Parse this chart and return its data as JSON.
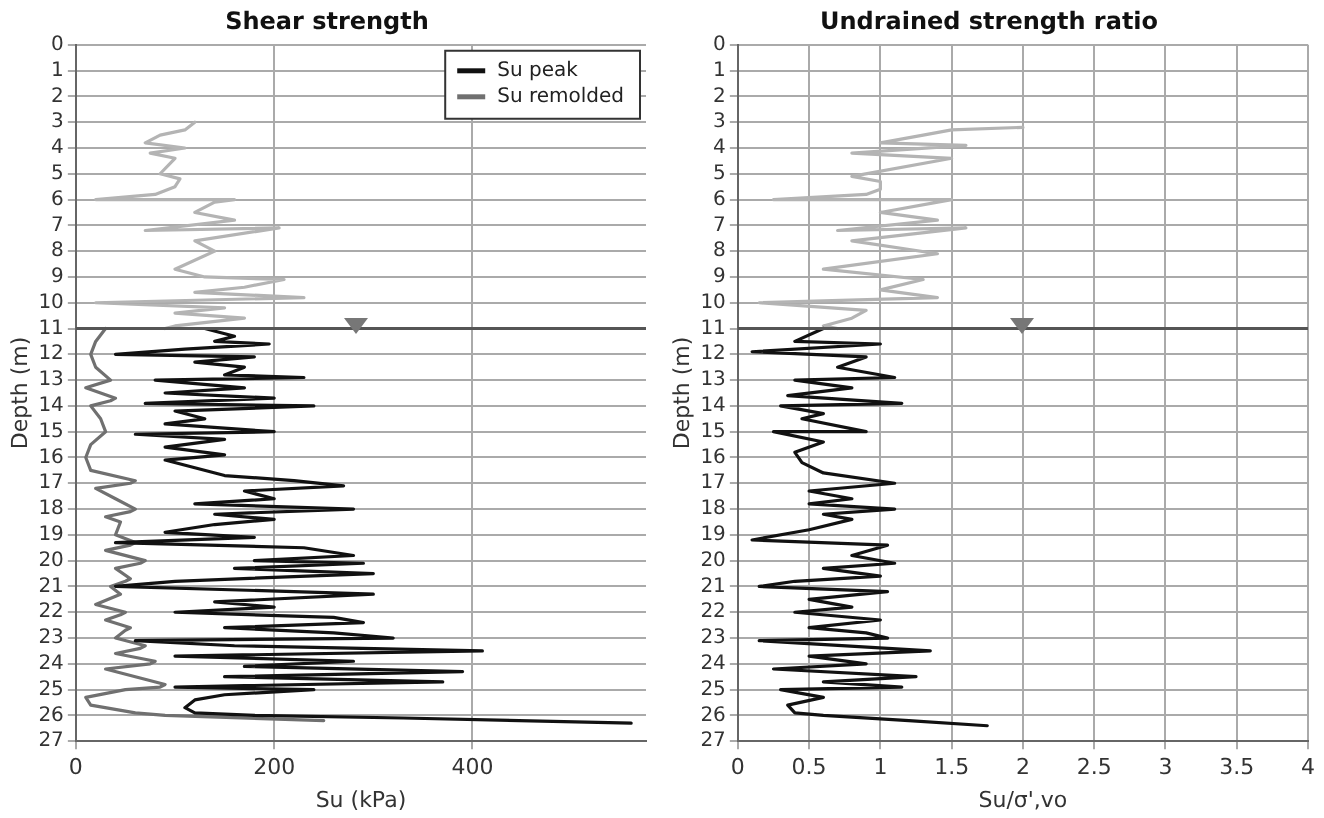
{
  "chart_data": [
    {
      "type": "line",
      "title": "Shear strength",
      "xlabel": "Su (kPa)",
      "ylabel": "Depth (m)",
      "xlim": [
        0,
        575
      ],
      "xticks": [
        0,
        200,
        400
      ],
      "ylim": [
        27,
        0
      ],
      "yticks": [
        0,
        1,
        2,
        3,
        4,
        5,
        6,
        7,
        8,
        9,
        10,
        11,
        12,
        13,
        14,
        15,
        16,
        17,
        18,
        19,
        20,
        21,
        22,
        23,
        24,
        25,
        26,
        27
      ],
      "grid": true,
      "legend": "top right",
      "ref_lines": [
        {
          "axis": "y",
          "value": 11,
          "color": "#555555"
        }
      ],
      "series": [
        {
          "color": "#b4b4b4",
          "x": [
            120,
            110,
            85,
            70,
            110,
            75,
            100,
            85,
            105,
            100,
            80,
            20,
            160,
            140,
            120,
            160,
            70,
            205,
            120,
            140,
            100,
            130,
            210,
            170,
            120,
            230,
            20,
            150,
            100,
            170,
            100,
            90
          ],
          "values": [
            3.0,
            3.3,
            3.5,
            3.8,
            4.0,
            4.2,
            4.4,
            5.0,
            5.2,
            5.5,
            5.8,
            6.0,
            6.0,
            6.1,
            6.5,
            6.8,
            7.2,
            7.1,
            7.6,
            8.0,
            8.7,
            9.0,
            9.1,
            9.4,
            9.6,
            9.8,
            10.0,
            10.2,
            10.4,
            10.6,
            10.9,
            11.0
          ]
        },
        {
          "name": "Su remolded",
          "color": "#707070",
          "x": [
            30,
            20,
            15,
            20,
            35,
            10,
            40,
            35,
            15,
            25,
            30,
            15,
            10,
            15,
            60,
            55,
            20,
            40,
            60,
            55,
            30,
            45,
            40,
            60,
            55,
            30,
            70,
            65,
            40,
            55,
            50,
            35,
            45,
            20,
            50,
            45,
            30,
            55,
            50,
            40,
            70,
            65,
            40,
            80,
            75,
            30,
            60,
            90,
            85,
            50,
            10,
            15,
            60,
            90,
            250
          ],
          "values": [
            11,
            11.5,
            12,
            12.5,
            13,
            13.3,
            13.7,
            13.8,
            14,
            14.5,
            15,
            15.5,
            16,
            16.5,
            16.9,
            17.0,
            17.2,
            17.6,
            18,
            18.1,
            18.3,
            18.5,
            19,
            19.3,
            19.4,
            19.6,
            20,
            20.1,
            20.3,
            20.7,
            20.8,
            21,
            21.3,
            21.7,
            22,
            22.1,
            22.3,
            22.6,
            22.7,
            23,
            23.3,
            23.4,
            23.6,
            23.9,
            24.0,
            24.2,
            24.5,
            24.8,
            24.9,
            25,
            25.3,
            25.6,
            25.9,
            26,
            26.2
          ]
        },
        {
          "name": "Su peak",
          "color": "#111111",
          "x": [
            130,
            160,
            140,
            195,
            110,
            40,
            180,
            120,
            170,
            150,
            230,
            80,
            170,
            90,
            200,
            70,
            240,
            100,
            130,
            90,
            200,
            60,
            150,
            90,
            150,
            90,
            120,
            150,
            220,
            270,
            170,
            200,
            120,
            280,
            140,
            200,
            140,
            90,
            180,
            40,
            230,
            280,
            180,
            290,
            160,
            300,
            100,
            40,
            220,
            300,
            140,
            200,
            100,
            260,
            290,
            150,
            260,
            320,
            60,
            160,
            410,
            100,
            280,
            170,
            390,
            150,
            370,
            100,
            240,
            150,
            120,
            110,
            120,
            180,
            330,
            560
          ],
          "values": [
            11,
            11.3,
            11.5,
            11.6,
            11.8,
            12.0,
            12.1,
            12.3,
            12.5,
            12.8,
            12.9,
            13.0,
            13.3,
            13.5,
            13.7,
            13.9,
            14.0,
            14.2,
            14.5,
            14.7,
            15.0,
            15.1,
            15.3,
            15.6,
            15.9,
            16.1,
            16.4,
            16.7,
            16.9,
            17.1,
            17.3,
            17.6,
            17.8,
            18.0,
            18.2,
            18.4,
            18.6,
            18.9,
            19.1,
            19.3,
            19.5,
            19.8,
            20.0,
            20.1,
            20.3,
            20.5,
            20.8,
            21.0,
            21.2,
            21.3,
            21.6,
            21.8,
            22.0,
            22.2,
            22.4,
            22.6,
            22.8,
            23.0,
            23.1,
            23.3,
            23.5,
            23.7,
            23.9,
            24.1,
            24.3,
            24.5,
            24.7,
            24.9,
            25.0,
            25.2,
            25.4,
            25.7,
            25.9,
            26.0,
            26.1,
            26.3
          ]
        }
      ]
    },
    {
      "type": "line",
      "title": "Undrained strength ratio",
      "xlabel": "Su/σ',vo",
      "ylabel": "Depth (m)",
      "xlim": [
        0,
        4
      ],
      "xticks": [
        0,
        0.5,
        1,
        1.5,
        2,
        2.5,
        3,
        3.5,
        4
      ],
      "ylim": [
        27,
        0
      ],
      "yticks": [
        0,
        1,
        2,
        3,
        4,
        5,
        6,
        7,
        8,
        9,
        10,
        11,
        12,
        13,
        14,
        15,
        16,
        17,
        18,
        19,
        20,
        21,
        22,
        23,
        24,
        25,
        26,
        27
      ],
      "grid": true,
      "ref_lines": [
        {
          "axis": "y",
          "value": 11,
          "color": "#555555"
        }
      ],
      "series": [
        {
          "color": "#b4b4b4",
          "x": [
            2.0,
            1.5,
            1.3,
            1.0,
            1.6,
            0.8,
            1.5,
            0.8,
            1.0,
            1.0,
            0.9,
            0.25,
            1.5,
            1.0,
            1.4,
            0.7,
            1.6,
            0.8,
            1.4,
            0.6,
            1.3,
            1.0,
            1.4,
            0.15,
            0.9,
            0.8,
            0.6,
            0.7
          ],
          "values": [
            3.2,
            3.3,
            3.5,
            3.8,
            3.9,
            4.2,
            4.4,
            5.1,
            5.3,
            5.6,
            5.8,
            6.0,
            6.0,
            6.5,
            6.8,
            7.2,
            7.1,
            7.6,
            8.1,
            8.7,
            9.1,
            9.5,
            9.8,
            10.0,
            10.3,
            10.6,
            10.9,
            11
          ]
        },
        {
          "color": "#111111",
          "x": [
            0.6,
            0.4,
            1.0,
            0.1,
            0.9,
            0.7,
            1.1,
            0.4,
            0.8,
            0.35,
            1.15,
            0.3,
            0.6,
            0.45,
            0.9,
            0.25,
            0.6,
            0.4,
            0.45,
            0.6,
            1.1,
            0.5,
            0.8,
            0.5,
            1.1,
            0.6,
            0.8,
            0.5,
            0.1,
            1.05,
            0.8,
            1.1,
            0.6,
            1.0,
            0.4,
            0.15,
            1.05,
            0.5,
            0.8,
            0.4,
            1.0,
            0.5,
            0.9,
            1.05,
            0.15,
            1.35,
            0.5,
            0.9,
            0.25,
            1.25,
            0.6,
            1.15,
            0.3,
            0.6,
            0.35,
            0.4,
            0.6,
            1.2,
            1.75
          ],
          "values": [
            11,
            11.5,
            11.6,
            11.9,
            12.1,
            12.5,
            12.9,
            13.0,
            13.3,
            13.6,
            13.9,
            14.0,
            14.3,
            14.5,
            15.0,
            15.0,
            15.4,
            15.8,
            16.2,
            16.6,
            17.0,
            17.3,
            17.6,
            17.8,
            18.0,
            18.2,
            18.4,
            18.8,
            19.2,
            19.4,
            19.8,
            20.1,
            20.3,
            20.6,
            20.8,
            21.0,
            21.2,
            21.5,
            21.8,
            22.0,
            22.3,
            22.6,
            22.8,
            23.0,
            23.1,
            23.5,
            23.7,
            24.0,
            24.2,
            24.5,
            24.7,
            24.9,
            25.0,
            25.3,
            25.6,
            25.9,
            26.0,
            26.2,
            26.4
          ]
        }
      ]
    }
  ]
}
